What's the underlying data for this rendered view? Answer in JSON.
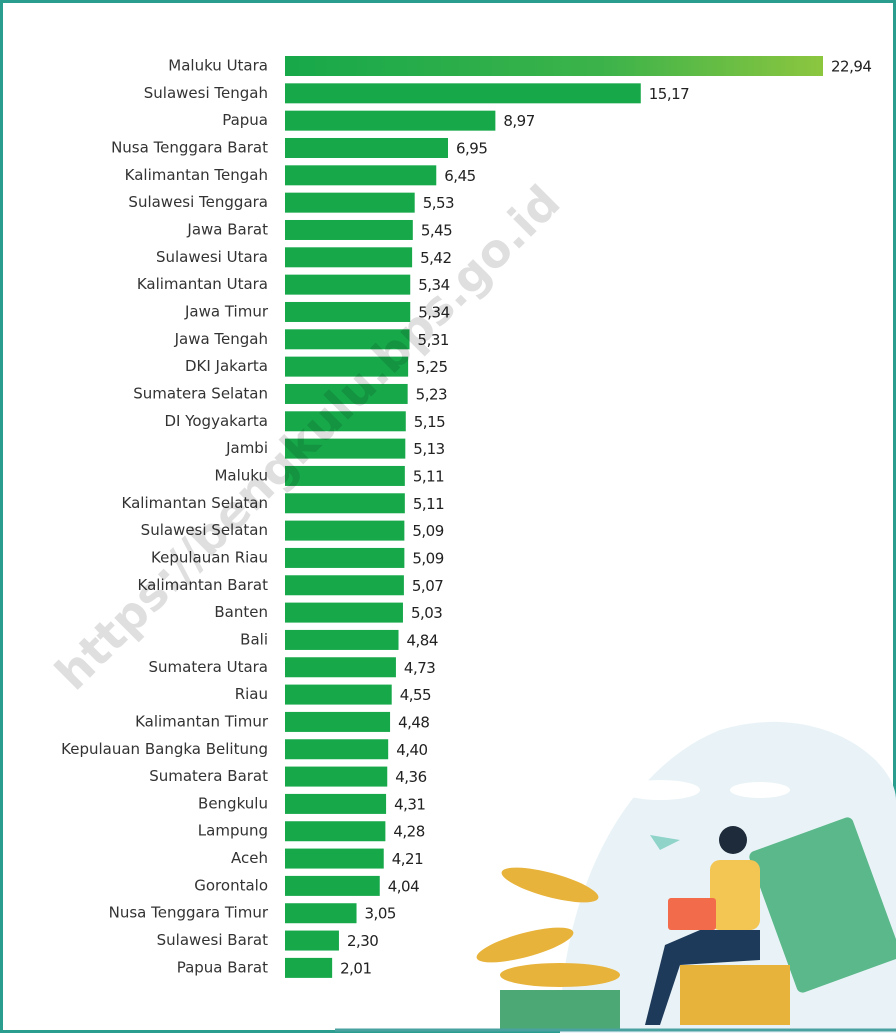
{
  "chart_data": {
    "type": "bar",
    "orientation": "horizontal",
    "categories": [
      "Maluku Utara",
      "Sulawesi Tengah",
      "Papua",
      "Nusa Tenggara Barat",
      "Kalimantan Tengah",
      "Sulawesi Tenggara",
      "Jawa Barat",
      "Sulawesi Utara",
      "Kalimantan Utara",
      "Jawa Timur",
      "Jawa Tengah",
      "DKI Jakarta",
      "Sumatera Selatan",
      "DI Yogyakarta",
      "Jambi",
      "Maluku",
      "Kalimantan Selatan",
      "Sulawesi Selatan",
      "Kepulauan Riau",
      "Kalimantan Barat",
      "Banten",
      "Bali",
      "Sumatera Utara",
      "Riau",
      "Kalimantan Timur",
      "Kepulauan Bangka Belitung",
      "Sumatera Barat",
      "Bengkulu",
      "Lampung",
      "Aceh",
      "Gorontalo",
      "Nusa Tenggara Timur",
      "Sulawesi Barat",
      "Papua Barat"
    ],
    "values": [
      22.94,
      15.17,
      8.97,
      6.95,
      6.45,
      5.53,
      5.45,
      5.42,
      5.34,
      5.34,
      5.31,
      5.25,
      5.23,
      5.15,
      5.13,
      5.11,
      5.11,
      5.09,
      5.09,
      5.07,
      5.03,
      4.84,
      4.73,
      4.55,
      4.48,
      4.4,
      4.36,
      4.31,
      4.28,
      4.21,
      4.04,
      3.05,
      2.3,
      2.01
    ],
    "value_labels": [
      "22,94",
      "15,17",
      "8,97",
      "6,95",
      "6,45",
      "5,53",
      "5,45",
      "5,42",
      "5,34",
      "5,34",
      "5,31",
      "5,25",
      "5,23",
      "5,15",
      "5,13",
      "5,11",
      "5,11",
      "5,09",
      "5,09",
      "5,07",
      "5,03",
      "4,84",
      "4,73",
      "4,55",
      "4,48",
      "4,40",
      "4,36",
      "4,31",
      "4,28",
      "4,21",
      "4,04",
      "3,05",
      "2,30",
      "2,01"
    ],
    "color": "#17a84a"
  },
  "watermark": "https://bengkulu.bps.go.id"
}
